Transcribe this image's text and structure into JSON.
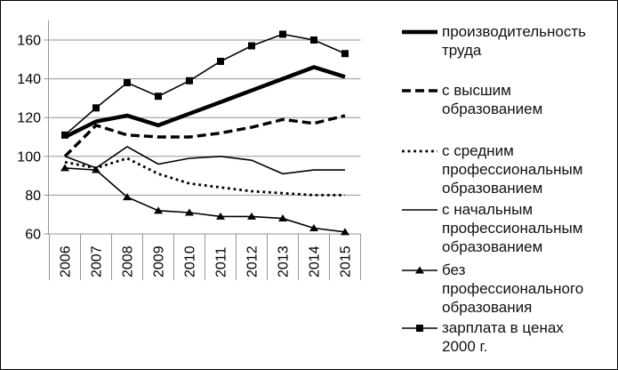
{
  "figure": {
    "background_color": "#ffffff",
    "border_color": "#000000"
  },
  "chart_data": {
    "type": "line",
    "categories": [
      "2006",
      "2007",
      "2008",
      "2009",
      "2010",
      "2011",
      "2012",
      "2013",
      "2014",
      "2015"
    ],
    "y_ticks": [
      60,
      80,
      100,
      120,
      140,
      160
    ],
    "ylim": [
      60,
      170
    ],
    "grid": "horizontal",
    "legend_position": "right",
    "x_label_rotation": -90,
    "axis_color": "#969696",
    "line_color": "#000000",
    "series": [
      {
        "name": "производительность труда",
        "style": "thick-solid",
        "marker": "none",
        "values": [
          110,
          118,
          121,
          116,
          122,
          128,
          134,
          140,
          146,
          141
        ]
      },
      {
        "name": "с высшим образованием",
        "style": "dashed",
        "marker": "none",
        "values": [
          100,
          116,
          111,
          110,
          110,
          112,
          115,
          119,
          117,
          121
        ]
      },
      {
        "name": "с средним профессиональным образованием",
        "style": "dotted",
        "marker": "none",
        "values": [
          97,
          94,
          99,
          91,
          86,
          84,
          82,
          81,
          80,
          80
        ]
      },
      {
        "name": "с начальным профессиональным образованием",
        "style": "thin-solid",
        "marker": "none",
        "values": [
          100,
          94,
          105,
          96,
          99,
          100,
          98,
          91,
          93,
          93
        ]
      },
      {
        "name": "без профессионального образования",
        "style": "thin-solid",
        "marker": "triangle",
        "values": [
          94,
          93,
          79,
          72,
          71,
          69,
          69,
          68,
          63,
          61
        ]
      },
      {
        "name": "зарплата в ценах 2000 г.",
        "style": "thin-solid",
        "marker": "square",
        "values": [
          111,
          125,
          138,
          131,
          139,
          149,
          157,
          163,
          160,
          153
        ]
      }
    ]
  }
}
